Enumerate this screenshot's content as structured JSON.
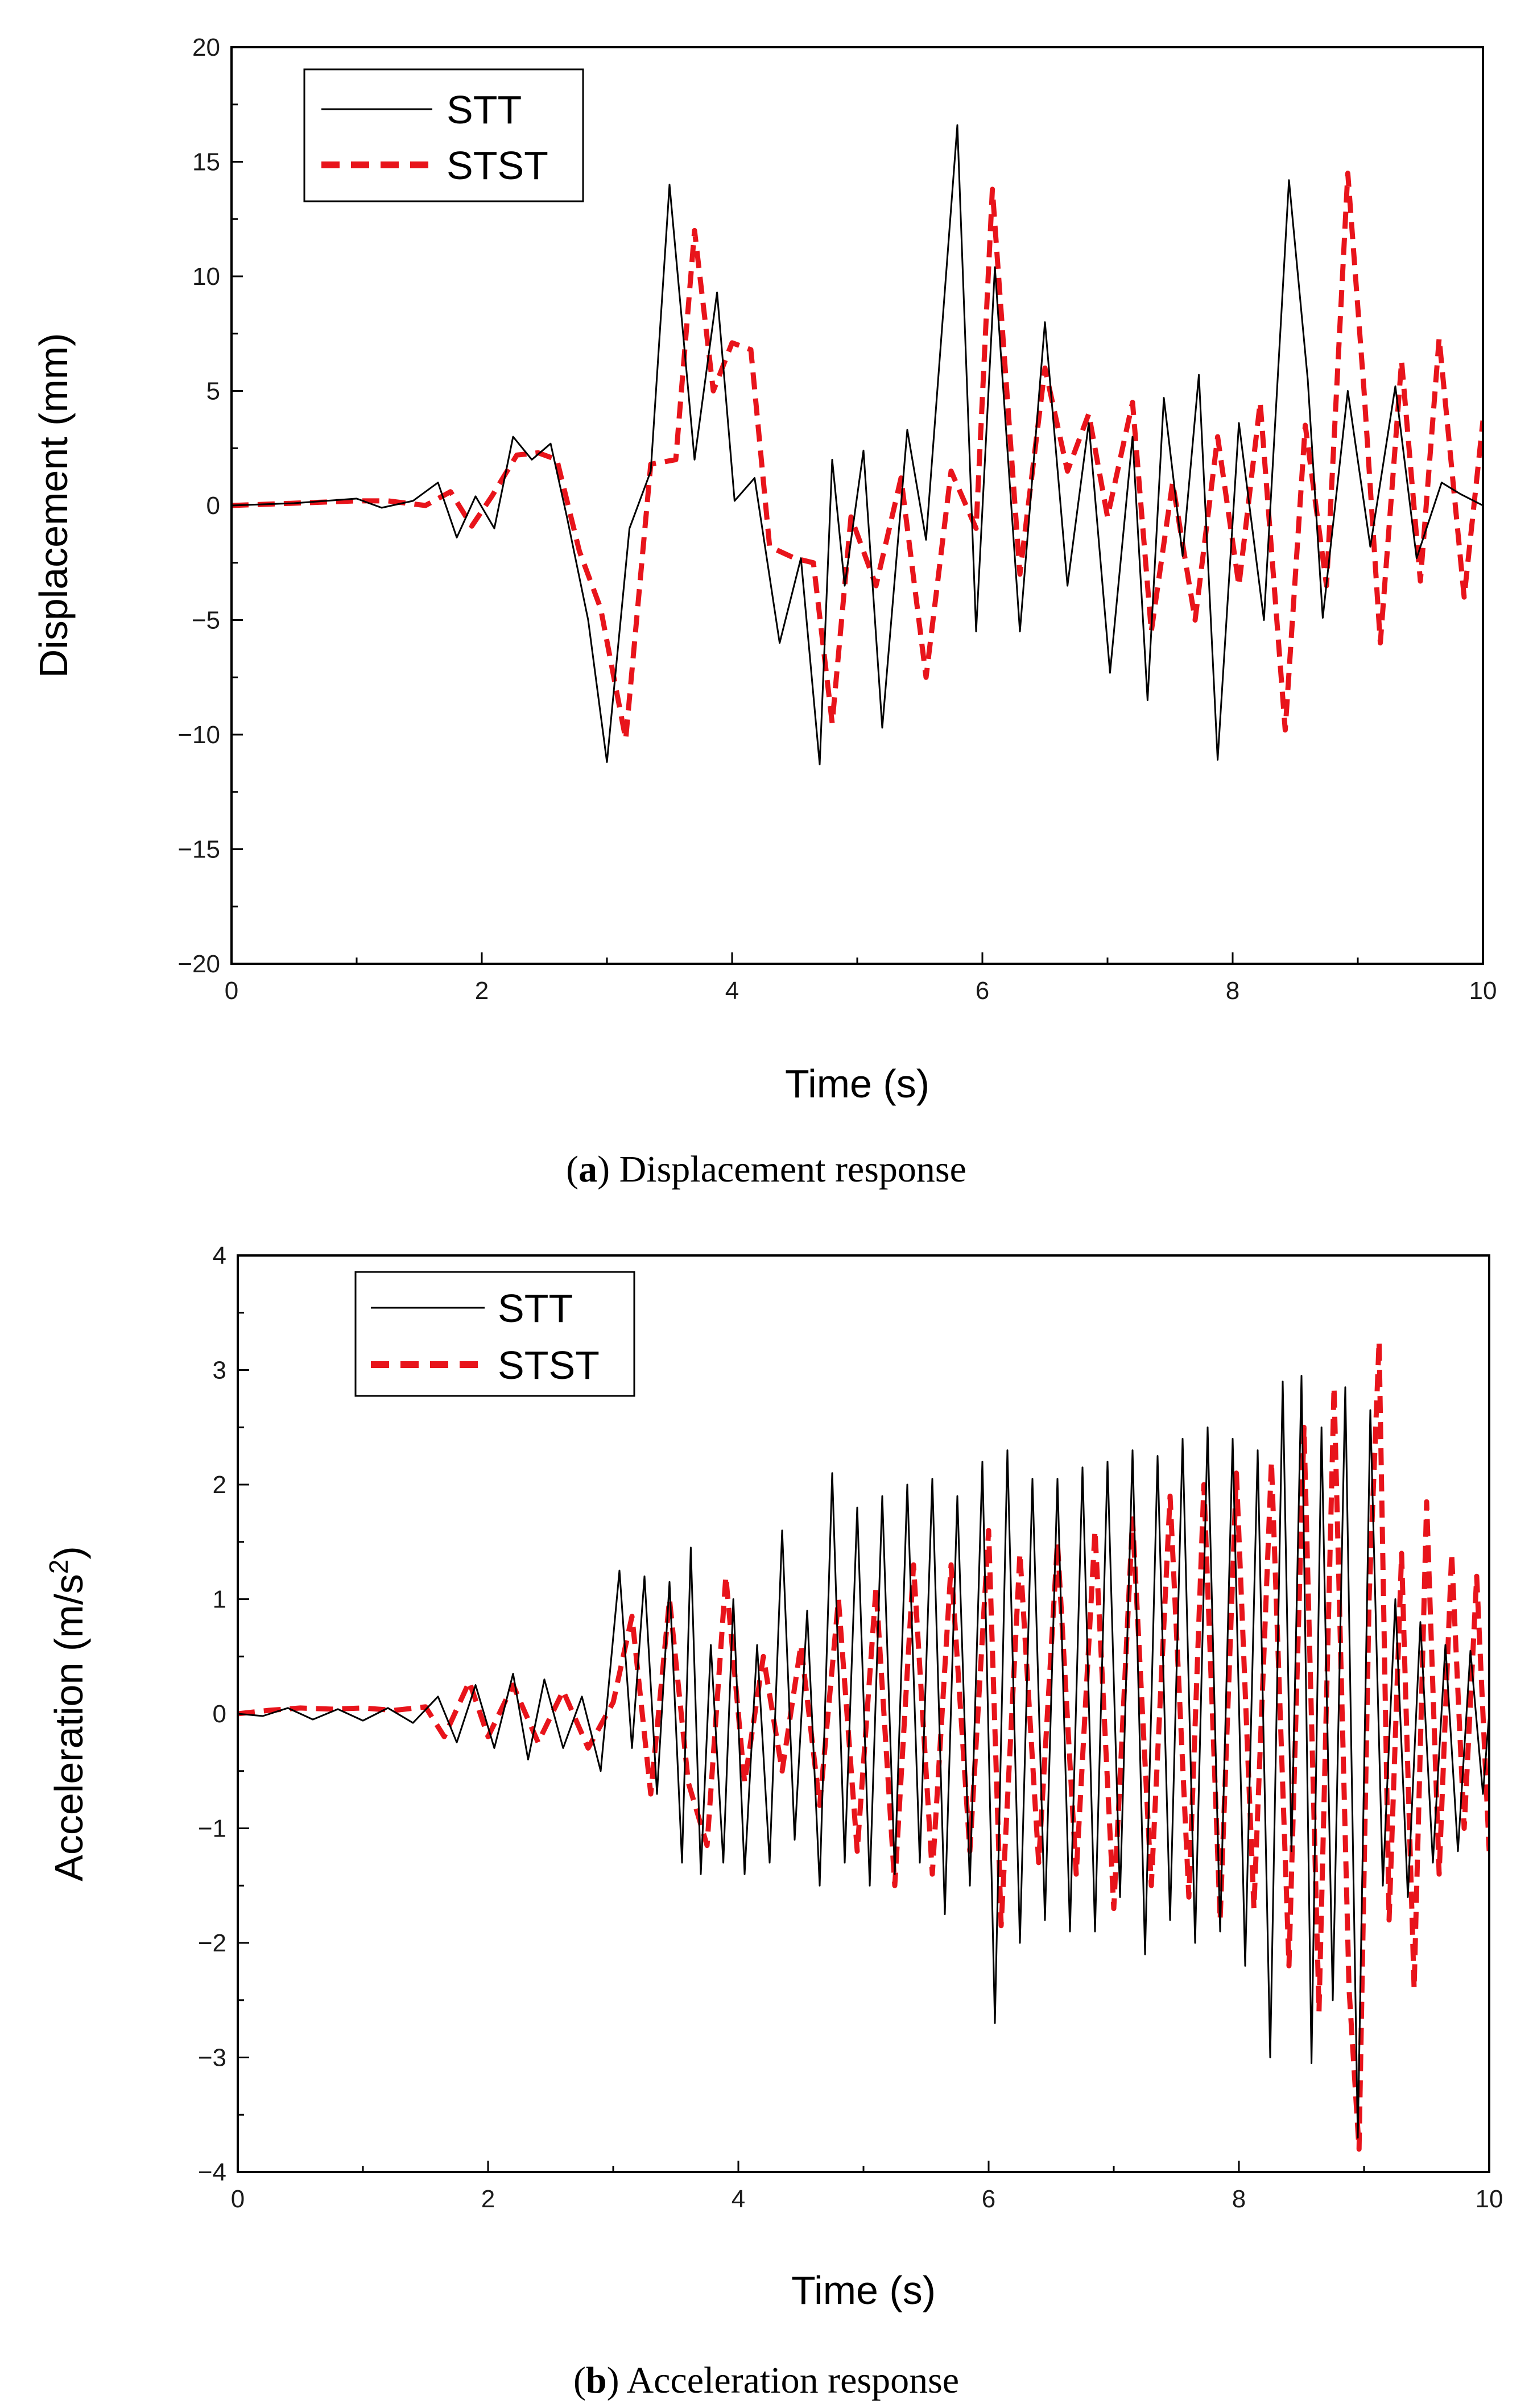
{
  "colors": {
    "stt": "#000000",
    "stst": "#e8141b",
    "axis": "#000000"
  },
  "chart_data": [
    {
      "type": "line",
      "id": "a",
      "xlabel": "Time (s)",
      "ylabel": "Displacement (mm)",
      "xlim": [
        0,
        10
      ],
      "ylim": [
        -20,
        20
      ],
      "xticks": [
        0,
        2,
        4,
        6,
        8,
        10
      ],
      "xtick_labels": [
        "0",
        "2",
        "4",
        "6",
        "8",
        "10"
      ],
      "yticks": [
        -20,
        -15,
        -10,
        -5,
        0,
        5,
        10,
        15,
        20
      ],
      "ytick_labels": [
        "−20",
        "−15",
        "−10",
        "−5",
        "0",
        "5",
        "10",
        "15",
        "20"
      ],
      "grid": false,
      "legend_position": "top-left",
      "caption_letter": "a",
      "caption_text": "Displacement response",
      "series": [
        {
          "name": "STT",
          "style": "solid",
          "x": [
            0,
            0.5,
            1.0,
            1.2,
            1.45,
            1.65,
            1.8,
            1.95,
            2.1,
            2.25,
            2.4,
            2.55,
            2.68,
            2.85,
            3.0,
            3.18,
            3.35,
            3.5,
            3.7,
            3.88,
            4.02,
            4.18,
            4.38,
            4.55,
            4.7,
            4.8,
            4.9,
            5.05,
            5.2,
            5.4,
            5.55,
            5.8,
            5.95,
            6.1,
            6.3,
            6.5,
            6.68,
            6.85,
            7.02,
            7.2,
            7.32,
            7.45,
            7.6,
            7.73,
            7.88,
            8.05,
            8.25,
            8.45,
            8.6,
            8.72,
            8.92,
            9.1,
            9.3,
            9.47,
            9.67,
            9.82,
            10.0
          ],
          "values": [
            0,
            0.1,
            0.3,
            -0.1,
            0.2,
            1.0,
            -1.4,
            0.4,
            -1.0,
            3.0,
            2.0,
            2.7,
            -0.5,
            -5.0,
            -11.2,
            -1.0,
            1.5,
            14.0,
            2.0,
            9.3,
            0.2,
            1.2,
            -6.0,
            -2.3,
            -11.3,
            2.0,
            -3.5,
            2.4,
            -9.7,
            3.3,
            -1.5,
            16.6,
            -5.5,
            10.4,
            -5.5,
            8.0,
            -3.5,
            3.6,
            -7.3,
            3.0,
            -8.5,
            4.7,
            -2.2,
            5.7,
            -11.1,
            3.6,
            -5.0,
            14.2,
            5.5,
            -4.9,
            5.0,
            -1.8,
            5.2,
            -2.3,
            1.0,
            0.5,
            0.0
          ]
        },
        {
          "name": "STST",
          "style": "dashed",
          "x": [
            0,
            0.5,
            1.0,
            1.25,
            1.55,
            1.75,
            1.92,
            2.08,
            2.28,
            2.45,
            2.6,
            2.78,
            2.95,
            3.15,
            3.35,
            3.55,
            3.7,
            3.85,
            4.0,
            4.15,
            4.3,
            4.5,
            4.65,
            4.8,
            4.95,
            5.15,
            5.35,
            5.55,
            5.75,
            5.95,
            6.08,
            6.3,
            6.5,
            6.68,
            6.85,
            7.0,
            7.2,
            7.35,
            7.52,
            7.7,
            7.88,
            8.05,
            8.22,
            8.42,
            8.58,
            8.75,
            8.92,
            9.05,
            9.18,
            9.35,
            9.5,
            9.65,
            9.85,
            10.0
          ],
          "values": [
            0,
            0.1,
            0.2,
            0.2,
            0.0,
            0.6,
            -0.9,
            0.4,
            2.2,
            2.3,
            2.0,
            -2.0,
            -4.5,
            -10.2,
            1.8,
            2.0,
            12.0,
            5.0,
            7.1,
            6.8,
            -1.8,
            -2.3,
            -2.5,
            -9.5,
            -0.5,
            -3.5,
            1.2,
            -7.5,
            1.5,
            -1.0,
            13.8,
            -3.0,
            6.0,
            1.5,
            4.0,
            -0.5,
            4.5,
            -5.5,
            1.0,
            -5.0,
            3.0,
            -3.5,
            4.5,
            -9.8,
            3.5,
            -3.5,
            14.5,
            5.0,
            -6.0,
            6.3,
            -3.3,
            7.3,
            -4.0,
            3.7
          ]
        }
      ]
    },
    {
      "type": "line",
      "id": "b",
      "xlabel": "Time (s)",
      "ylabel": "Acceleration (m/s",
      "ylabel_superscript": "2",
      "ylabel_suffix": ")",
      "xlim": [
        0,
        10
      ],
      "ylim": [
        -4,
        4
      ],
      "xticks": [
        0,
        2,
        4,
        6,
        8,
        10
      ],
      "xtick_labels": [
        "0",
        "2",
        "4",
        "6",
        "8",
        "10"
      ],
      "yticks": [
        -4,
        -3,
        -2,
        -1,
        0,
        1,
        2,
        3,
        4
      ],
      "ytick_labels": [
        "−4",
        "−3",
        "−2",
        "−1",
        "0",
        "1",
        "2",
        "3",
        "4"
      ],
      "grid": false,
      "legend_position": "top-left",
      "caption_letter": "b",
      "caption_text": "Acceleration response",
      "series": [
        {
          "name": "STT",
          "style": "solid",
          "x": [
            0,
            0.2,
            0.4,
            0.6,
            0.8,
            1.0,
            1.2,
            1.4,
            1.6,
            1.75,
            1.9,
            2.05,
            2.2,
            2.32,
            2.45,
            2.6,
            2.75,
            2.9,
            3.05,
            3.15,
            3.25,
            3.35,
            3.45,
            3.55,
            3.62,
            3.7,
            3.78,
            3.88,
            3.96,
            4.05,
            4.15,
            4.25,
            4.35,
            4.45,
            4.55,
            4.65,
            4.75,
            4.85,
            4.95,
            5.05,
            5.15,
            5.25,
            5.35,
            5.45,
            5.55,
            5.65,
            5.75,
            5.85,
            5.95,
            6.05,
            6.15,
            6.25,
            6.35,
            6.45,
            6.55,
            6.65,
            6.75,
            6.85,
            6.95,
            7.05,
            7.15,
            7.25,
            7.35,
            7.45,
            7.55,
            7.65,
            7.75,
            7.85,
            7.95,
            8.05,
            8.15,
            8.25,
            8.35,
            8.42,
            8.5,
            8.58,
            8.66,
            8.75,
            8.85,
            8.95,
            9.05,
            9.15,
            9.25,
            9.35,
            9.45,
            9.55,
            9.65,
            9.75,
            9.85,
            9.95,
            10.0
          ],
          "values": [
            0.0,
            -0.02,
            0.05,
            -0.05,
            0.04,
            -0.06,
            0.05,
            -0.08,
            0.15,
            -0.25,
            0.25,
            -0.3,
            0.35,
            -0.4,
            0.3,
            -0.3,
            0.15,
            -0.5,
            1.25,
            -0.3,
            1.2,
            -0.7,
            1.15,
            -1.3,
            1.45,
            -1.4,
            0.6,
            -1.3,
            1.0,
            -1.4,
            0.6,
            -1.3,
            1.6,
            -1.1,
            0.9,
            -1.5,
            2.1,
            -1.3,
            1.8,
            -1.5,
            1.9,
            -1.4,
            2.0,
            -1.3,
            2.05,
            -1.75,
            1.9,
            -1.5,
            2.2,
            -2.7,
            2.3,
            -2.0,
            2.05,
            -1.8,
            2.05,
            -1.9,
            2.15,
            -1.9,
            2.2,
            -1.6,
            2.3,
            -2.1,
            2.25,
            -1.8,
            2.4,
            -2.0,
            2.5,
            -1.9,
            2.4,
            -2.2,
            2.3,
            -3.0,
            2.9,
            -1.2,
            2.95,
            -3.05,
            2.5,
            -2.5,
            2.85,
            -3.7,
            2.65,
            -1.5,
            1.0,
            -1.6,
            0.8,
            -1.3,
            0.6,
            -1.2,
            0.55,
            -0.7,
            0.0
          ]
        },
        {
          "name": "STST",
          "style": "dashed",
          "x": [
            0,
            0.25,
            0.5,
            0.75,
            1.0,
            1.25,
            1.5,
            1.65,
            1.85,
            2.0,
            2.2,
            2.4,
            2.6,
            2.8,
            3.0,
            3.15,
            3.3,
            3.45,
            3.6,
            3.75,
            3.9,
            4.05,
            4.2,
            4.35,
            4.5,
            4.65,
            4.8,
            4.95,
            5.1,
            5.25,
            5.4,
            5.55,
            5.7,
            5.85,
            6.0,
            6.1,
            6.25,
            6.4,
            6.55,
            6.7,
            6.85,
            7.0,
            7.15,
            7.3,
            7.45,
            7.6,
            7.72,
            7.85,
            7.98,
            8.12,
            8.26,
            8.4,
            8.52,
            8.64,
            8.76,
            8.88,
            8.96,
            9.04,
            9.12,
            9.2,
            9.3,
            9.4,
            9.5,
            9.6,
            9.7,
            9.8,
            9.9,
            10.0
          ],
          "values": [
            0.0,
            0.03,
            0.05,
            0.04,
            0.05,
            0.03,
            0.06,
            -0.2,
            0.28,
            -0.2,
            0.25,
            -0.25,
            0.2,
            -0.3,
            0.1,
            0.85,
            -0.7,
            1.0,
            -0.6,
            -1.15,
            1.2,
            -0.6,
            0.5,
            -0.5,
            0.6,
            -0.8,
            1.0,
            -1.2,
            1.1,
            -1.5,
            1.3,
            -1.4,
            1.3,
            -1.2,
            1.6,
            -1.85,
            1.4,
            -1.3,
            1.5,
            -1.4,
            1.6,
            -1.7,
            1.7,
            -1.5,
            1.9,
            -1.6,
            2.0,
            -1.8,
            2.1,
            -1.7,
            2.2,
            -2.2,
            2.5,
            -2.6,
            2.85,
            -2.4,
            -3.8,
            1.0,
            3.25,
            -1.8,
            1.4,
            -2.4,
            1.85,
            -1.4,
            1.4,
            -1.0,
            1.2,
            -1.2
          ]
        }
      ]
    }
  ]
}
